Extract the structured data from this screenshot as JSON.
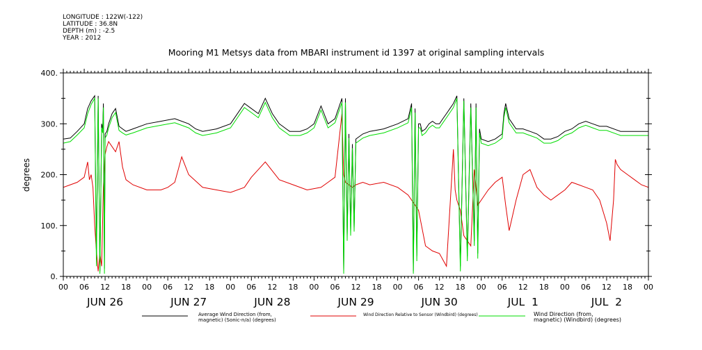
{
  "header": {
    "lines": [
      "LONGITUDE : 122W(-122)",
      "LATITUDE : 36.8N",
      "DEPTH (m) : -2.5",
      "YEAR : 2012"
    ]
  },
  "chart_data": {
    "type": "line",
    "title": "Mooring M1 Metsys data from MBARI instrument id 1397 at original sampling intervals",
    "ylabel": "degrees",
    "xlabel": "",
    "ylim": [
      0,
      400
    ],
    "yticks": [
      "0.",
      "100.",
      "200.",
      "300.",
      "400."
    ],
    "yticks_values": [
      0,
      100,
      200,
      300,
      400
    ],
    "xlim_hours": [
      0,
      168
    ],
    "x_hour_labels": [
      "00",
      "06",
      "12",
      "18",
      "00",
      "06",
      "12",
      "18",
      "00",
      "06",
      "12",
      "18",
      "00",
      "06",
      "12",
      "18",
      "00",
      "06",
      "12",
      "18",
      "00",
      "06",
      "12",
      "18",
      "00",
      "06",
      "12",
      "18",
      "00"
    ],
    "x_day_labels": [
      "JUN 26",
      "JUN 27",
      "JUN 28",
      "JUN 29",
      "JUN 30",
      "JUL  1",
      "JUL  2"
    ],
    "grid": false,
    "legend_position": "bottom",
    "series": [
      {
        "name": "Average Wind Direction (from, magnetic) (Sonic-n/a) (degrees)",
        "legend_line1": "Average Wind Direction (from,",
        "legend_line2": "magnetic) (Sonic-n/a) (degrees)",
        "color": "#000000",
        "x": [
          0,
          2,
          4,
          6,
          7,
          8,
          9,
          9.5,
          10,
          10.5,
          11,
          11.3,
          11.5,
          11.8,
          12,
          12.5,
          13,
          14,
          15,
          16,
          17,
          18,
          20,
          24,
          28,
          32,
          36,
          38,
          40,
          44,
          48,
          52,
          54,
          56,
          58,
          60,
          62,
          63,
          64,
          65,
          66,
          68,
          70,
          72,
          74,
          76,
          78,
          80,
          80.5,
          81,
          81.5,
          82,
          82.5,
          83,
          83.5,
          84,
          86,
          88,
          92,
          96,
          99,
          100,
          100.5,
          101,
          101.5,
          102,
          102.5,
          103,
          104,
          105,
          106,
          107,
          108,
          109,
          110,
          111,
          112,
          113,
          114,
          115,
          116,
          117,
          118,
          118.5,
          119,
          119.5,
          120,
          122,
          124,
          126,
          126.5,
          127,
          128,
          129,
          130,
          132,
          134,
          136,
          138,
          140,
          142,
          144,
          146,
          148,
          150,
          152,
          154,
          156,
          160,
          164,
          168
        ],
        "y": [
          270,
          272,
          285,
          300,
          330,
          345,
          355,
          35,
          355,
          10,
          300,
          290,
          340,
          15,
          280,
          285,
          300,
          320,
          330,
          295,
          290,
          285,
          290,
          300,
          305,
          310,
          300,
          290,
          285,
          290,
          300,
          340,
          330,
          320,
          350,
          320,
          300,
          295,
          290,
          285,
          285,
          285,
          290,
          300,
          335,
          300,
          310,
          350,
          10,
          350,
          80,
          280,
          90,
          260,
          95,
          270,
          280,
          285,
          290,
          300,
          310,
          340,
          10,
          330,
          40,
          300,
          300,
          285,
          290,
          300,
          305,
          300,
          300,
          310,
          320,
          330,
          340,
          355,
          20,
          350,
          40,
          340,
          70,
          340,
          45,
          290,
          270,
          265,
          270,
          280,
          320,
          340,
          310,
          300,
          290,
          290,
          285,
          280,
          270,
          270,
          275,
          285,
          290,
          300,
          305,
          300,
          295,
          295,
          285,
          285,
          285
        ]
      },
      {
        "name": "Wind Direction Relative to Sensor (Windbird) (degrees)",
        "legend_line1": "Wind Direction Relative to Sensor (Windbird) (degrees)",
        "legend_line2": "",
        "color": "#e00000",
        "x": [
          0,
          2,
          4,
          6,
          7,
          7.5,
          8,
          8.5,
          9,
          9.5,
          10,
          10.5,
          11,
          11.5,
          12,
          12.5,
          13,
          14,
          15,
          16,
          17,
          18,
          20,
          24,
          28,
          30,
          32,
          34,
          36,
          40,
          44,
          48,
          52,
          54,
          56,
          58,
          62,
          66,
          70,
          74,
          76,
          78,
          80,
          80.5,
          81,
          82,
          83,
          84,
          86,
          88,
          92,
          96,
          99,
          100,
          102,
          104,
          106,
          108,
          110,
          112,
          112.5,
          113,
          114,
          115,
          116,
          117,
          118,
          118.5,
          119,
          120,
          122,
          124,
          126,
          127,
          128,
          130,
          132,
          134,
          136,
          138,
          140,
          142,
          144,
          146,
          148,
          150,
          152,
          154,
          156,
          157,
          158,
          158.5,
          159,
          160,
          162,
          164,
          166,
          168
        ],
        "y": [
          175,
          180,
          185,
          195,
          225,
          190,
          200,
          175,
          100,
          50,
          10,
          45,
          20,
          175,
          240,
          255,
          265,
          255,
          245,
          265,
          215,
          190,
          180,
          170,
          170,
          175,
          185,
          235,
          200,
          175,
          170,
          165,
          175,
          195,
          210,
          225,
          190,
          180,
          170,
          175,
          185,
          195,
          320,
          200,
          185,
          180,
          175,
          180,
          185,
          180,
          185,
          175,
          160,
          150,
          130,
          60,
          50,
          45,
          20,
          250,
          170,
          150,
          130,
          80,
          70,
          60,
          210,
          175,
          140,
          150,
          170,
          185,
          195,
          140,
          90,
          150,
          200,
          210,
          175,
          160,
          150,
          160,
          170,
          185,
          180,
          175,
          170,
          150,
          105,
          70,
          150,
          230,
          220,
          210,
          200,
          190,
          180,
          175
        ]
      },
      {
        "name": "Wind Direction (from, magnetic) (Windbird) (degrees)",
        "legend_line1": "Wind Direction (from,",
        "legend_line2": "magnetic) (Windbird) (degrees)",
        "color": "#00dd00",
        "x": [
          0,
          2,
          4,
          6,
          7,
          8,
          9,
          9.5,
          10,
          10.5,
          11,
          11.3,
          11.5,
          11.8,
          12,
          12.5,
          13,
          14,
          15,
          16,
          17,
          18,
          20,
          24,
          28,
          32,
          36,
          38,
          40,
          44,
          48,
          52,
          54,
          56,
          58,
          60,
          62,
          63,
          64,
          65,
          66,
          68,
          70,
          72,
          74,
          76,
          78,
          80,
          80.5,
          81,
          81.5,
          82,
          82.5,
          83,
          83.5,
          84,
          86,
          88,
          92,
          96,
          99,
          100,
          100.5,
          101,
          101.5,
          102,
          102.5,
          103,
          104,
          105,
          106,
          107,
          108,
          109,
          110,
          111,
          112,
          113,
          114,
          115,
          116,
          117,
          118,
          118.5,
          119,
          119.5,
          120,
          122,
          124,
          126,
          126.5,
          127,
          128,
          129,
          130,
          132,
          134,
          136,
          138,
          140,
          142,
          144,
          146,
          148,
          150,
          152,
          154,
          156,
          160,
          164,
          168
        ],
        "y": [
          262,
          265,
          278,
          292,
          320,
          338,
          350,
          20,
          350,
          5,
          292,
          282,
          332,
          5,
          272,
          278,
          292,
          312,
          322,
          287,
          282,
          278,
          282,
          292,
          297,
          302,
          292,
          282,
          277,
          282,
          292,
          332,
          322,
          312,
          342,
          312,
          292,
          287,
          282,
          277,
          277,
          277,
          282,
          292,
          327,
          292,
          302,
          342,
          5,
          342,
          70,
          272,
          80,
          252,
          88,
          262,
          272,
          277,
          282,
          292,
          302,
          332,
          5,
          322,
          30,
          292,
          292,
          277,
          282,
          292,
          297,
          292,
          292,
          302,
          312,
          322,
          332,
          350,
          10,
          345,
          30,
          332,
          60,
          332,
          35,
          282,
          262,
          257,
          262,
          272,
          312,
          332,
          302,
          292,
          282,
          282,
          277,
          272,
          262,
          262,
          267,
          277,
          282,
          292,
          297,
          292,
          287,
          287,
          277,
          277,
          277
        ]
      }
    ]
  }
}
